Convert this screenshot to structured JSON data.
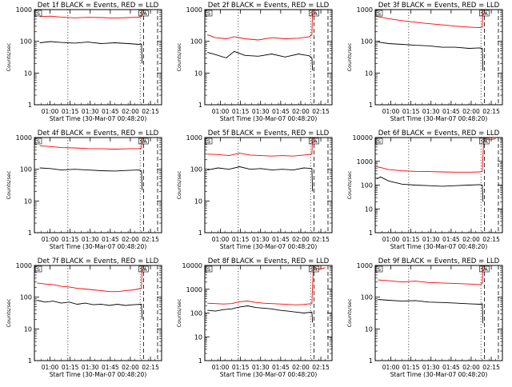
{
  "common": {
    "y_label": "Counts/sec",
    "x_label": "Start Time (30-Mar-07 00:48:20)",
    "x_tick_labels": [
      "01:00",
      "01:15",
      "01:30",
      "01:45",
      "02:00",
      "02:15"
    ],
    "marker_s": "S",
    "marker_sa": "SA",
    "colors": {
      "events": "#000000",
      "lld": "#ff0000"
    }
  },
  "chart_data": [
    {
      "type": "line",
      "title": "Det 1f BLACK = Events, RED = LLD",
      "y_scale": "log",
      "ylim": [
        1,
        1000
      ],
      "y_tick_labels": [
        "1",
        "10",
        "100",
        "1000"
      ],
      "xlim_minutes": [
        0,
        95
      ],
      "series": [
        {
          "name": "BLACK = Events",
          "color": "#000000",
          "x_minutes": [
            4,
            12,
            20,
            30,
            40,
            50,
            60,
            70,
            78,
            80,
            80.5
          ],
          "values": [
            90,
            98,
            92,
            88,
            95,
            85,
            90,
            85,
            80,
            82,
            20
          ]
        },
        {
          "name": "RED = LLD",
          "color": "#ff0000",
          "x_minutes": [
            4,
            12,
            20,
            30,
            40,
            50,
            60,
            70,
            78,
            80,
            80.5
          ],
          "values": [
            600,
            620,
            580,
            550,
            570,
            560,
            540,
            560,
            580,
            600,
            1000
          ]
        }
      ]
    },
    {
      "type": "line",
      "title": "Det 2f BLACK = Events, RED = LLD",
      "y_scale": "log",
      "ylim": [
        1,
        1000
      ],
      "y_tick_labels": [
        "1",
        "10",
        "100",
        "1000"
      ],
      "xlim_minutes": [
        0,
        95
      ],
      "series": [
        {
          "name": "BLACK = Events",
          "color": "#000000",
          "x_minutes": [
            2,
            8,
            16,
            22,
            30,
            40,
            50,
            60,
            70,
            78,
            80,
            80.5
          ],
          "values": [
            45,
            38,
            30,
            48,
            36,
            34,
            40,
            32,
            40,
            35,
            30,
            12
          ]
        },
        {
          "name": "RED = LLD",
          "color": "#ff0000",
          "x_minutes": [
            2,
            8,
            16,
            22,
            30,
            40,
            50,
            60,
            70,
            78,
            80,
            80.5
          ],
          "values": [
            160,
            130,
            120,
            140,
            120,
            110,
            130,
            120,
            125,
            140,
            160,
            1000
          ]
        }
      ]
    },
    {
      "type": "line",
      "title": "Det 3f BLACK = Events, RED = LLD",
      "y_scale": "log",
      "ylim": [
        1,
        1000
      ],
      "y_tick_labels": [
        "1",
        "10",
        "100",
        "1000"
      ],
      "xlim_minutes": [
        0,
        95
      ],
      "series": [
        {
          "name": "BLACK = Events",
          "color": "#000000",
          "x_minutes": [
            2,
            10,
            20,
            30,
            40,
            50,
            60,
            70,
            78,
            80,
            80.5
          ],
          "values": [
            95,
            85,
            80,
            75,
            72,
            65,
            65,
            60,
            62,
            60,
            12
          ]
        },
        {
          "name": "RED = LLD",
          "color": "#ff0000",
          "x_minutes": [
            2,
            10,
            20,
            30,
            40,
            50,
            60,
            70,
            78,
            80,
            80.5
          ],
          "values": [
            600,
            520,
            450,
            400,
            360,
            330,
            300,
            280,
            270,
            280,
            1000
          ]
        }
      ]
    },
    {
      "type": "line",
      "title": "Det 4f BLACK = Events, RED = LLD",
      "y_scale": "log",
      "ylim": [
        1,
        1000
      ],
      "y_tick_labels": [
        "1",
        "10",
        "100",
        "1000"
      ],
      "xlim_minutes": [
        0,
        95
      ],
      "series": [
        {
          "name": "BLACK = Events",
          "color": "#000000",
          "x_minutes": [
            4,
            12,
            20,
            30,
            40,
            50,
            60,
            70,
            78,
            80,
            80.5
          ],
          "values": [
            110,
            105,
            95,
            100,
            95,
            90,
            88,
            92,
            95,
            88,
            22
          ]
        },
        {
          "name": "RED = LLD",
          "color": "#ff0000",
          "x_minutes": [
            4,
            12,
            20,
            30,
            40,
            50,
            60,
            70,
            78,
            80,
            80.5
          ],
          "values": [
            550,
            520,
            480,
            470,
            450,
            440,
            430,
            440,
            450,
            460,
            1000
          ]
        }
      ]
    },
    {
      "type": "line",
      "title": "Det 5f BLACK = Events, RED = LLD",
      "y_scale": "log",
      "ylim": [
        1,
        1000
      ],
      "y_tick_labels": [
        "1",
        "10",
        "100",
        "1000"
      ],
      "xlim_minutes": [
        0,
        95
      ],
      "series": [
        {
          "name": "BLACK = Events",
          "color": "#000000",
          "x_minutes": [
            2,
            10,
            18,
            26,
            34,
            42,
            50,
            58,
            66,
            74,
            80,
            80.5
          ],
          "values": [
            95,
            110,
            100,
            120,
            100,
            105,
            95,
            100,
            95,
            110,
            105,
            20
          ]
        },
        {
          "name": "RED = LLD",
          "color": "#ff0000",
          "x_minutes": [
            2,
            10,
            18,
            26,
            34,
            42,
            50,
            58,
            66,
            74,
            80,
            80.5
          ],
          "values": [
            300,
            290,
            270,
            320,
            280,
            270,
            260,
            270,
            260,
            280,
            300,
            1000
          ]
        }
      ]
    },
    {
      "type": "line",
      "title": "Det 6f BLACK = Events, RED = LLD",
      "y_scale": "log",
      "ylim": [
        1,
        10000
      ],
      "y_tick_labels": [
        "1",
        "10",
        "100",
        "1000",
        "10000"
      ],
      "xlim_minutes": [
        0,
        95
      ],
      "series": [
        {
          "name": "BLACK = Events",
          "color": "#000000",
          "x_minutes": [
            1,
            4,
            10,
            20,
            30,
            40,
            50,
            60,
            70,
            78,
            80,
            80.5
          ],
          "values": [
            180,
            220,
            150,
            110,
            100,
            95,
            90,
            95,
            100,
            105,
            100,
            20
          ]
        },
        {
          "name": "RED = LLD",
          "color": "#ff0000",
          "x_minutes": [
            1,
            4,
            10,
            20,
            30,
            40,
            50,
            60,
            70,
            78,
            80,
            81,
            85,
            90
          ],
          "values": [
            600,
            550,
            450,
            400,
            380,
            370,
            360,
            350,
            350,
            360,
            380,
            9000,
            8000,
            9000
          ]
        }
      ]
    },
    {
      "type": "line",
      "title": "Det 7f BLACK = Events, RED = LLD",
      "y_scale": "log",
      "ylim": [
        1,
        1000
      ],
      "y_tick_labels": [
        "1",
        "10",
        "100",
        "1000"
      ],
      "xlim_minutes": [
        0,
        95
      ],
      "series": [
        {
          "name": "BLACK = Events",
          "color": "#000000",
          "x_minutes": [
            2,
            8,
            14,
            20,
            26,
            32,
            38,
            44,
            50,
            56,
            62,
            68,
            74,
            80,
            80.5
          ],
          "values": [
            80,
            70,
            75,
            65,
            70,
            60,
            65,
            58,
            60,
            55,
            60,
            55,
            58,
            60,
            20
          ]
        },
        {
          "name": "RED = LLD",
          "color": "#ff0000",
          "x_minutes": [
            2,
            8,
            14,
            20,
            26,
            32,
            38,
            44,
            50,
            56,
            62,
            68,
            74,
            80,
            80.5
          ],
          "values": [
            280,
            260,
            250,
            220,
            210,
            190,
            180,
            170,
            160,
            150,
            150,
            160,
            170,
            190,
            1000
          ]
        }
      ]
    },
    {
      "type": "line",
      "title": "Det 8f BLACK = Events, RED = LLD",
      "y_scale": "log",
      "ylim": [
        1,
        10000
      ],
      "y_tick_labels": [
        "1",
        "10",
        "100",
        "1000",
        "10000"
      ],
      "xlim_minutes": [
        0,
        95
      ],
      "series": [
        {
          "name": "BLACK = Events",
          "color": "#000000",
          "x_minutes": [
            2,
            8,
            14,
            20,
            26,
            32,
            38,
            44,
            50,
            56,
            62,
            68,
            74,
            80,
            80.5
          ],
          "values": [
            130,
            120,
            140,
            150,
            180,
            200,
            170,
            160,
            150,
            130,
            120,
            110,
            100,
            110,
            40
          ]
        },
        {
          "name": "RED = LLD",
          "color": "#ff0000",
          "x_minutes": [
            2,
            8,
            14,
            20,
            26,
            32,
            38,
            44,
            50,
            56,
            62,
            68,
            74,
            80,
            81,
            85,
            90
          ],
          "values": [
            260,
            250,
            240,
            250,
            300,
            320,
            280,
            260,
            250,
            240,
            230,
            220,
            230,
            250,
            9000,
            7000,
            8000
          ]
        }
      ]
    },
    {
      "type": "line",
      "title": "Det 9f BLACK = Events, RED = LLD",
      "y_scale": "log",
      "ylim": [
        1,
        1000
      ],
      "y_tick_labels": [
        "1",
        "10",
        "100",
        "1000"
      ],
      "xlim_minutes": [
        0,
        95
      ],
      "series": [
        {
          "name": "BLACK = Events",
          "color": "#000000",
          "x_minutes": [
            2,
            10,
            20,
            30,
            40,
            50,
            60,
            70,
            78,
            80,
            80.5
          ],
          "values": [
            85,
            80,
            75,
            78,
            70,
            68,
            65,
            62,
            60,
            62,
            15
          ]
        },
        {
          "name": "RED = LLD",
          "color": "#ff0000",
          "x_minutes": [
            2,
            10,
            20,
            30,
            40,
            50,
            60,
            70,
            78,
            80,
            80.5
          ],
          "values": [
            350,
            330,
            300,
            320,
            290,
            280,
            270,
            260,
            250,
            270,
            1000
          ]
        }
      ]
    }
  ]
}
